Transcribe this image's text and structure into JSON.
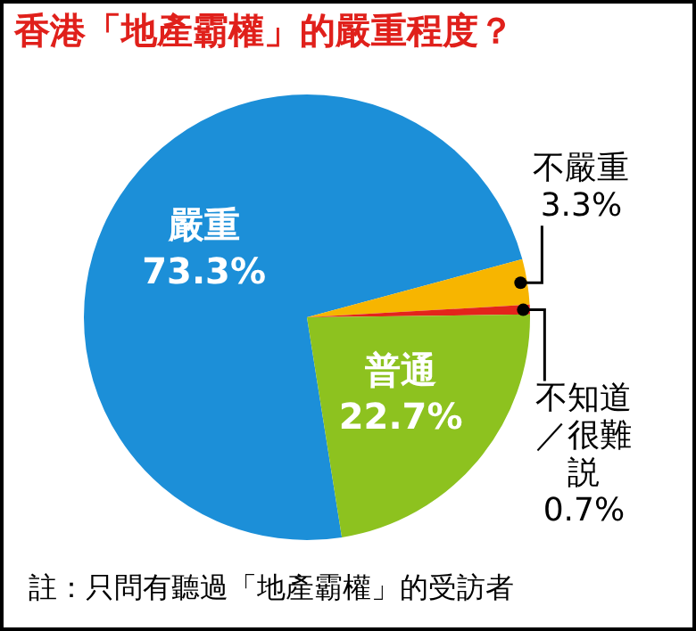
{
  "chart_data": {
    "type": "pie",
    "title": "香港「地產霸權」的嚴重程度？",
    "categories": [
      "嚴重",
      "不嚴重",
      "不知道／很難説",
      "普通"
    ],
    "values": [
      73.3,
      3.3,
      0.7,
      22.7
    ],
    "value_labels": [
      "73.3%",
      "3.3%",
      "0.7%",
      "22.7%"
    ],
    "colors": [
      "#1c8fd8",
      "#f7b500",
      "#e3241b",
      "#8dc21f"
    ],
    "legend": false,
    "annotations": [
      "註：只問有聽過「地產霸權」的受訪者"
    ]
  }
}
